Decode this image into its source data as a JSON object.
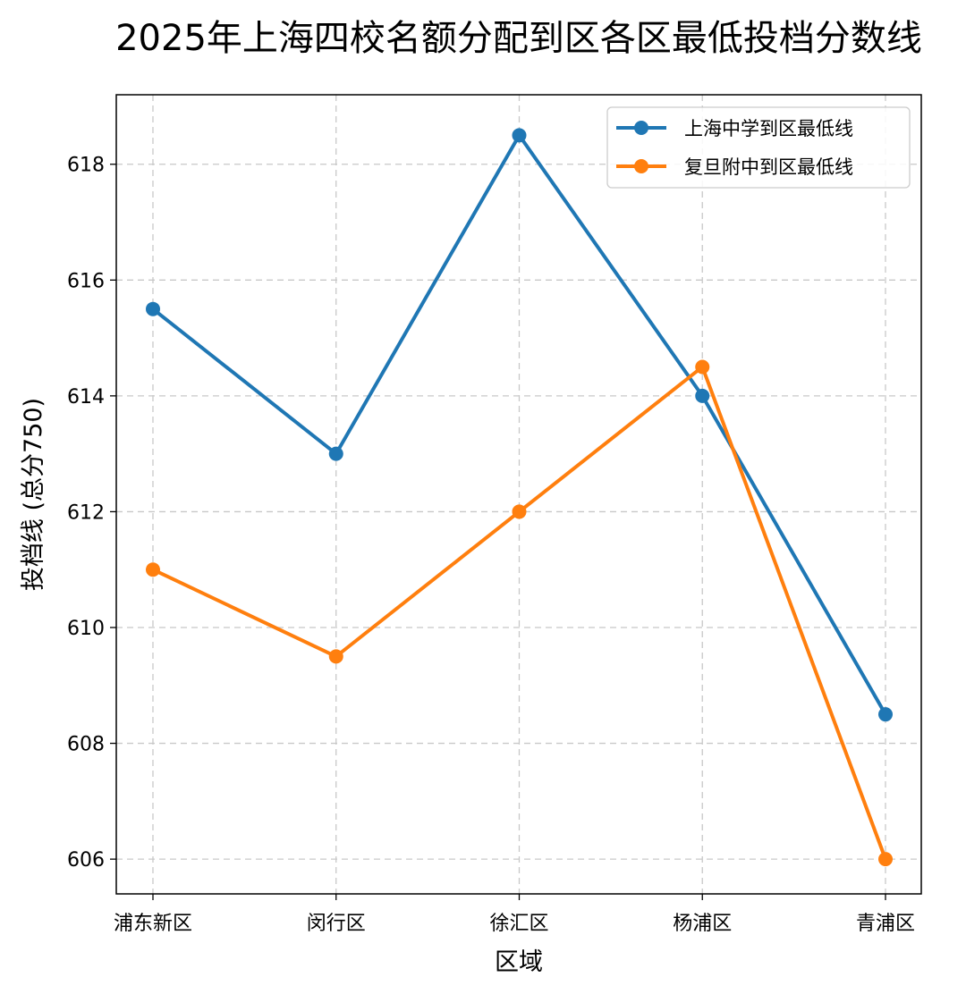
{
  "chart_data": {
    "type": "line",
    "title": "2025年上海四校名额分配到区各区最低投档分数线",
    "xlabel": "区域",
    "ylabel": "投档线 (总分750)",
    "categories": [
      "浦东新区",
      "闵行区",
      "徐汇区",
      "杨浦区",
      "青浦区"
    ],
    "series": [
      {
        "name": "上海中学到区最低线",
        "color": "#1f77b4",
        "values": [
          615.5,
          613,
          618.5,
          614,
          608.5
        ]
      },
      {
        "name": "复旦附中到区最低线",
        "color": "#ff7f0e",
        "values": [
          611,
          609.5,
          612,
          614.5,
          606
        ]
      }
    ],
    "ylim": [
      605.4,
      619.2
    ],
    "yticks": [
      606,
      608,
      610,
      612,
      614,
      616,
      618
    ],
    "grid": true,
    "legend_position": "top-right"
  }
}
